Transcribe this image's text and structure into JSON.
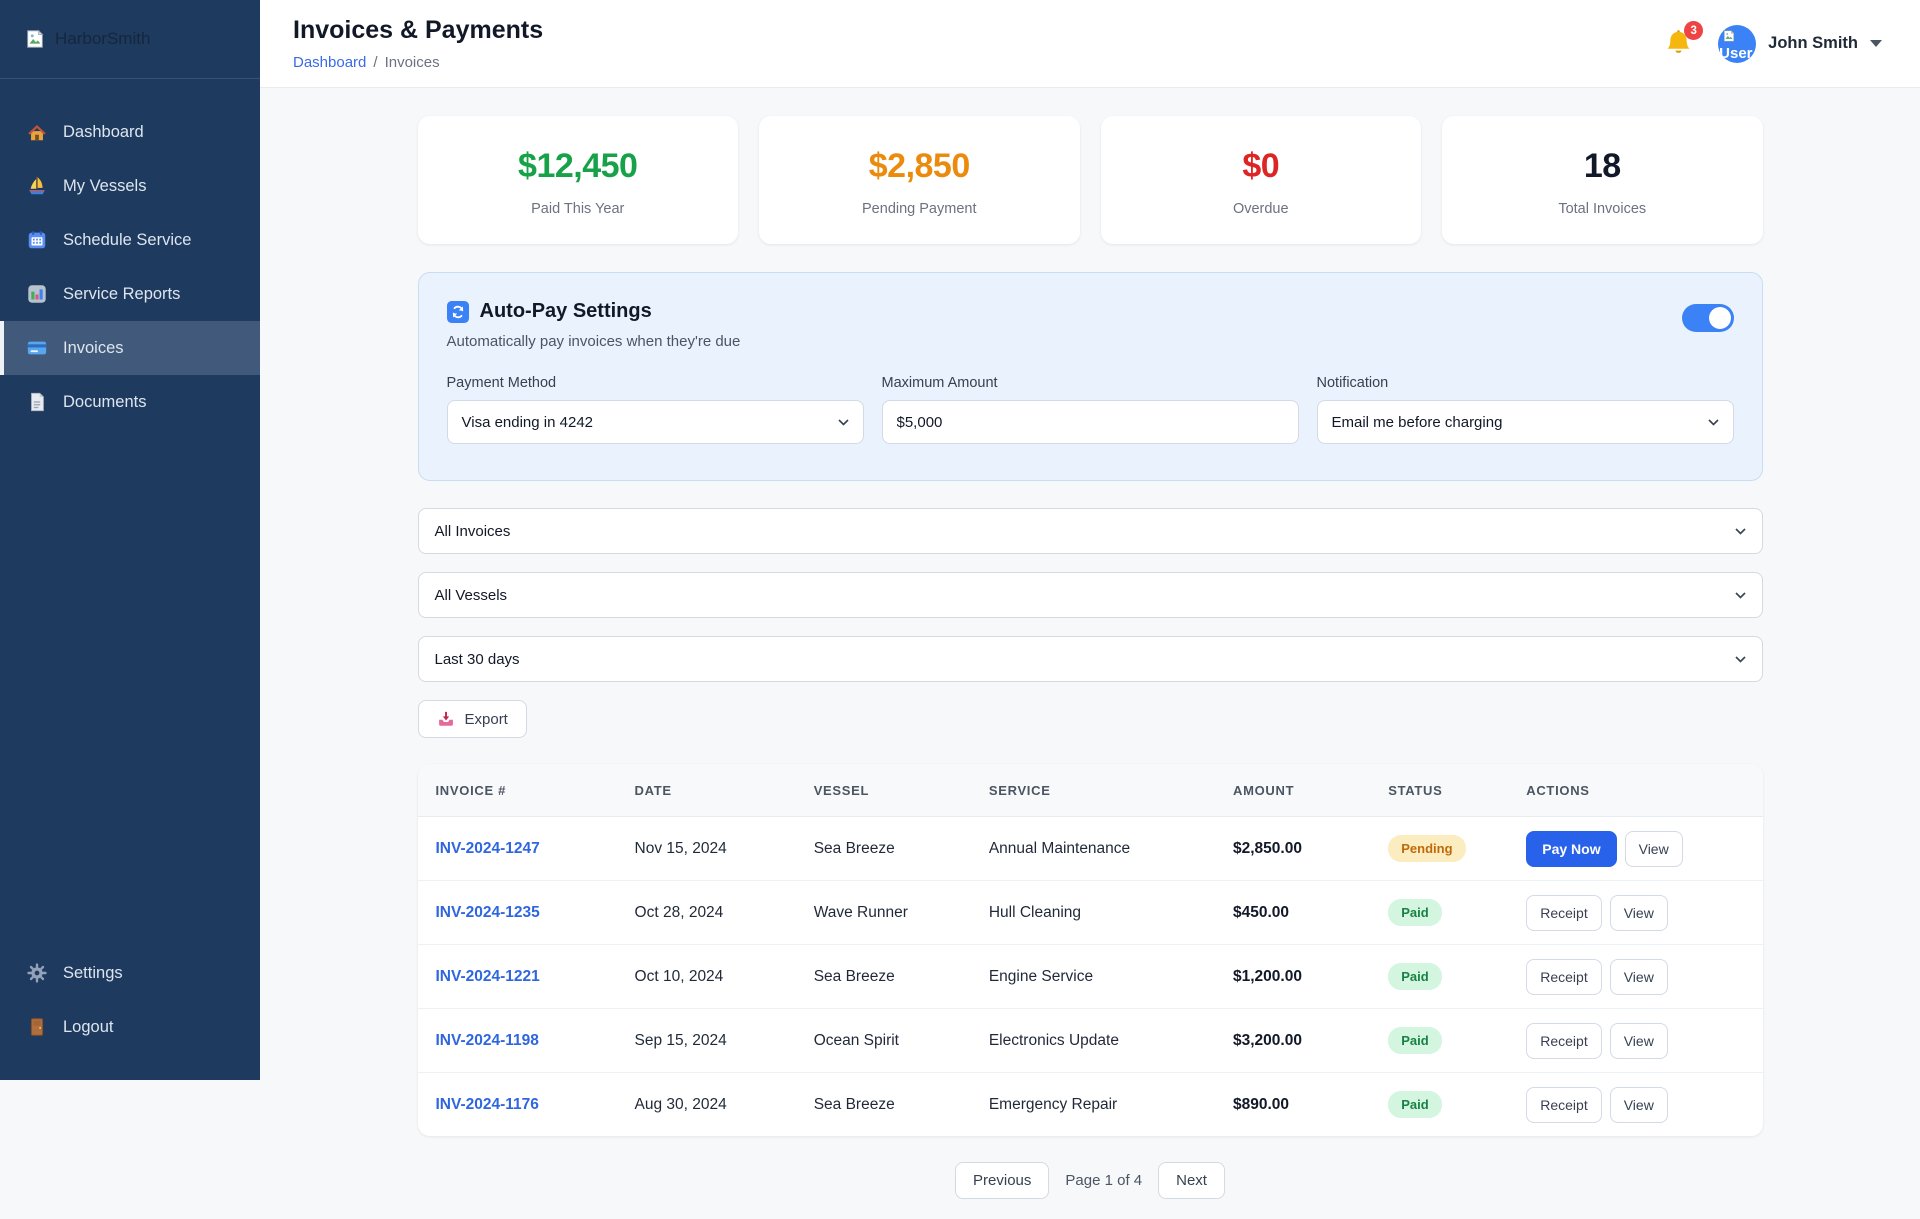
{
  "sidebar": {
    "logo_text": "HarborSmith",
    "items": [
      {
        "icon": "home-icon",
        "label": "Dashboard",
        "active": false
      },
      {
        "icon": "sailboat-icon",
        "label": "My Vessels",
        "active": false
      },
      {
        "icon": "calendar-icon",
        "label": "Schedule Service",
        "active": false
      },
      {
        "icon": "bar-chart-icon",
        "label": "Service Reports",
        "active": false
      },
      {
        "icon": "credit-card-icon",
        "label": "Invoices",
        "active": true
      },
      {
        "icon": "document-icon",
        "label": "Documents",
        "active": false
      }
    ],
    "footer_items": [
      {
        "icon": "gear-icon",
        "label": "Settings"
      },
      {
        "icon": "door-icon",
        "label": "Logout"
      }
    ]
  },
  "header": {
    "title": "Invoices & Payments",
    "breadcrumb": {
      "link": "Dashboard",
      "separator": "/",
      "current": "Invoices"
    },
    "notifications_count": "3",
    "user_name": "John Smith",
    "avatar_alt": "User"
  },
  "stats": [
    {
      "value": "$12,450",
      "label": "Paid This Year",
      "color": "#17a24a"
    },
    {
      "value": "$2,850",
      "label": "Pending Payment",
      "color": "#ea8b0e"
    },
    {
      "value": "$0",
      "label": "Overdue",
      "color": "#dc2626"
    },
    {
      "value": "18",
      "label": "Total Invoices",
      "color": "#111827"
    }
  ],
  "autopay": {
    "title": "Auto-Pay Settings",
    "subtitle": "Automatically pay invoices when they're due",
    "enabled": true,
    "fields": [
      {
        "label": "Payment Method",
        "value": "Visa ending in 4242",
        "type": "select"
      },
      {
        "label": "Maximum Amount",
        "value": "$5,000",
        "type": "input"
      },
      {
        "label": "Notification",
        "value": "Email me before charging",
        "type": "select"
      }
    ]
  },
  "filters": [
    {
      "value": "All Invoices"
    },
    {
      "value": "All Vessels"
    },
    {
      "value": "Last 30 days"
    }
  ],
  "export": {
    "label": "Export",
    "icon": "inbox-tray-icon"
  },
  "table": {
    "columns": [
      "INVOICE #",
      "DATE",
      "VESSEL",
      "SERVICE",
      "AMOUNT",
      "STATUS",
      "ACTIONS"
    ],
    "rows": [
      {
        "invoice": "INV-2024-1247",
        "date": "Nov 15, 2024",
        "vessel": "Sea Breeze",
        "service": "Annual Maintenance",
        "amount": "$2,850.00",
        "status": "Pending",
        "actions": [
          "Pay Now",
          "View"
        ]
      },
      {
        "invoice": "INV-2024-1235",
        "date": "Oct 28, 2024",
        "vessel": "Wave Runner",
        "service": "Hull Cleaning",
        "amount": "$450.00",
        "status": "Paid",
        "actions": [
          "Receipt",
          "View"
        ]
      },
      {
        "invoice": "INV-2024-1221",
        "date": "Oct 10, 2024",
        "vessel": "Sea Breeze",
        "service": "Engine Service",
        "amount": "$1,200.00",
        "status": "Paid",
        "actions": [
          "Receipt",
          "View"
        ]
      },
      {
        "invoice": "INV-2024-1198",
        "date": "Sep 15, 2024",
        "vessel": "Ocean Spirit",
        "service": "Electronics Update",
        "amount": "$3,200.00",
        "status": "Paid",
        "actions": [
          "Receipt",
          "View"
        ]
      },
      {
        "invoice": "INV-2024-1176",
        "date": "Aug 30, 2024",
        "vessel": "Sea Breeze",
        "service": "Emergency Repair",
        "amount": "$890.00",
        "status": "Paid",
        "actions": [
          "Receipt",
          "View"
        ]
      }
    ]
  },
  "pagination": {
    "previous": "Previous",
    "status": "Page 1 of 4",
    "next": "Next"
  },
  "colors": {
    "sidebar_bg": "#1e3a5f",
    "accent_blue": "#2861ea",
    "toggle_on": "#3b82f6",
    "paid_green": "#17a24a",
    "pending_orange": "#ea8b0e",
    "overdue_red": "#dc2626"
  }
}
